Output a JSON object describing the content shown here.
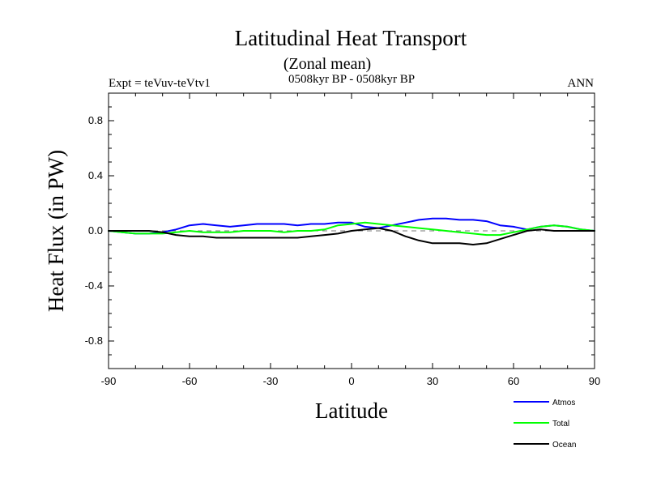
{
  "chart_data": {
    "type": "line",
    "title": "Latitudinal Heat Transport",
    "subtitle": "(Zonal mean)",
    "left_label": "Expt = teVuv-teVtv1",
    "center_label": "0508kyr BP - 0508kyr BP",
    "right_label": "ANN",
    "xlabel": "Latitude",
    "ylabel": "Heat Flux (in PW)",
    "xlim": [
      -90,
      90
    ],
    "ylim": [
      -1.0,
      1.0
    ],
    "x_ticks": [
      -90,
      -60,
      -30,
      0,
      30,
      60,
      90
    ],
    "x_tick_labels": [
      "-90",
      "-60",
      "-30",
      "0",
      "30",
      "60",
      "90"
    ],
    "y_ticks": [
      0.8,
      0.4,
      0.0,
      -0.4,
      -0.8
    ],
    "y_tick_labels": [
      "0.8",
      "0.4",
      "0.0",
      "-0.4",
      "-0.8"
    ],
    "zero_line": "dashed",
    "legend_position": "below-right",
    "series": [
      {
        "name": "Atmos",
        "color": "#0000ff",
        "x": [
          -90,
          -85,
          -80,
          -75,
          -70,
          -65,
          -60,
          -55,
          -50,
          -45,
          -40,
          -35,
          -30,
          -25,
          -20,
          -15,
          -10,
          -5,
          0,
          5,
          10,
          15,
          20,
          25,
          30,
          35,
          40,
          45,
          50,
          55,
          60,
          65,
          70,
          75,
          80,
          85,
          90
        ],
        "y": [
          0.0,
          -0.01,
          -0.02,
          -0.02,
          -0.01,
          0.01,
          0.04,
          0.05,
          0.04,
          0.03,
          0.04,
          0.05,
          0.05,
          0.05,
          0.04,
          0.05,
          0.05,
          0.06,
          0.06,
          0.03,
          0.02,
          0.04,
          0.06,
          0.08,
          0.09,
          0.09,
          0.08,
          0.08,
          0.07,
          0.04,
          0.03,
          0.01,
          0.03,
          0.04,
          0.03,
          0.01,
          0.0
        ]
      },
      {
        "name": "Total",
        "color": "#00ff00",
        "x": [
          -90,
          -85,
          -80,
          -75,
          -70,
          -65,
          -60,
          -55,
          -50,
          -45,
          -40,
          -35,
          -30,
          -25,
          -20,
          -15,
          -10,
          -5,
          0,
          5,
          10,
          15,
          20,
          25,
          30,
          35,
          40,
          45,
          50,
          55,
          60,
          65,
          70,
          75,
          80,
          85,
          90
        ],
        "y": [
          0.0,
          -0.01,
          -0.02,
          -0.02,
          -0.02,
          -0.01,
          0.0,
          -0.01,
          -0.01,
          -0.01,
          0.0,
          0.0,
          0.0,
          -0.01,
          0.0,
          0.0,
          0.01,
          0.04,
          0.05,
          0.06,
          0.05,
          0.04,
          0.03,
          0.02,
          0.01,
          0.0,
          -0.01,
          -0.02,
          -0.03,
          -0.03,
          -0.01,
          0.01,
          0.03,
          0.04,
          0.03,
          0.01,
          0.0
        ]
      },
      {
        "name": "Ocean",
        "color": "#000000",
        "x": [
          -90,
          -85,
          -80,
          -75,
          -70,
          -65,
          -60,
          -55,
          -50,
          -45,
          -40,
          -35,
          -30,
          -25,
          -20,
          -15,
          -10,
          -5,
          0,
          5,
          10,
          15,
          20,
          25,
          30,
          35,
          40,
          45,
          50,
          55,
          60,
          65,
          70,
          75,
          80,
          85,
          90
        ],
        "y": [
          0.0,
          0.0,
          0.0,
          0.0,
          -0.01,
          -0.03,
          -0.04,
          -0.04,
          -0.05,
          -0.05,
          -0.05,
          -0.05,
          -0.05,
          -0.05,
          -0.05,
          -0.04,
          -0.03,
          -0.02,
          0.0,
          0.01,
          0.02,
          0.0,
          -0.04,
          -0.07,
          -0.09,
          -0.09,
          -0.09,
          -0.1,
          -0.09,
          -0.06,
          -0.03,
          0.0,
          0.01,
          0.0,
          0.0,
          0.0,
          0.0
        ]
      }
    ]
  }
}
